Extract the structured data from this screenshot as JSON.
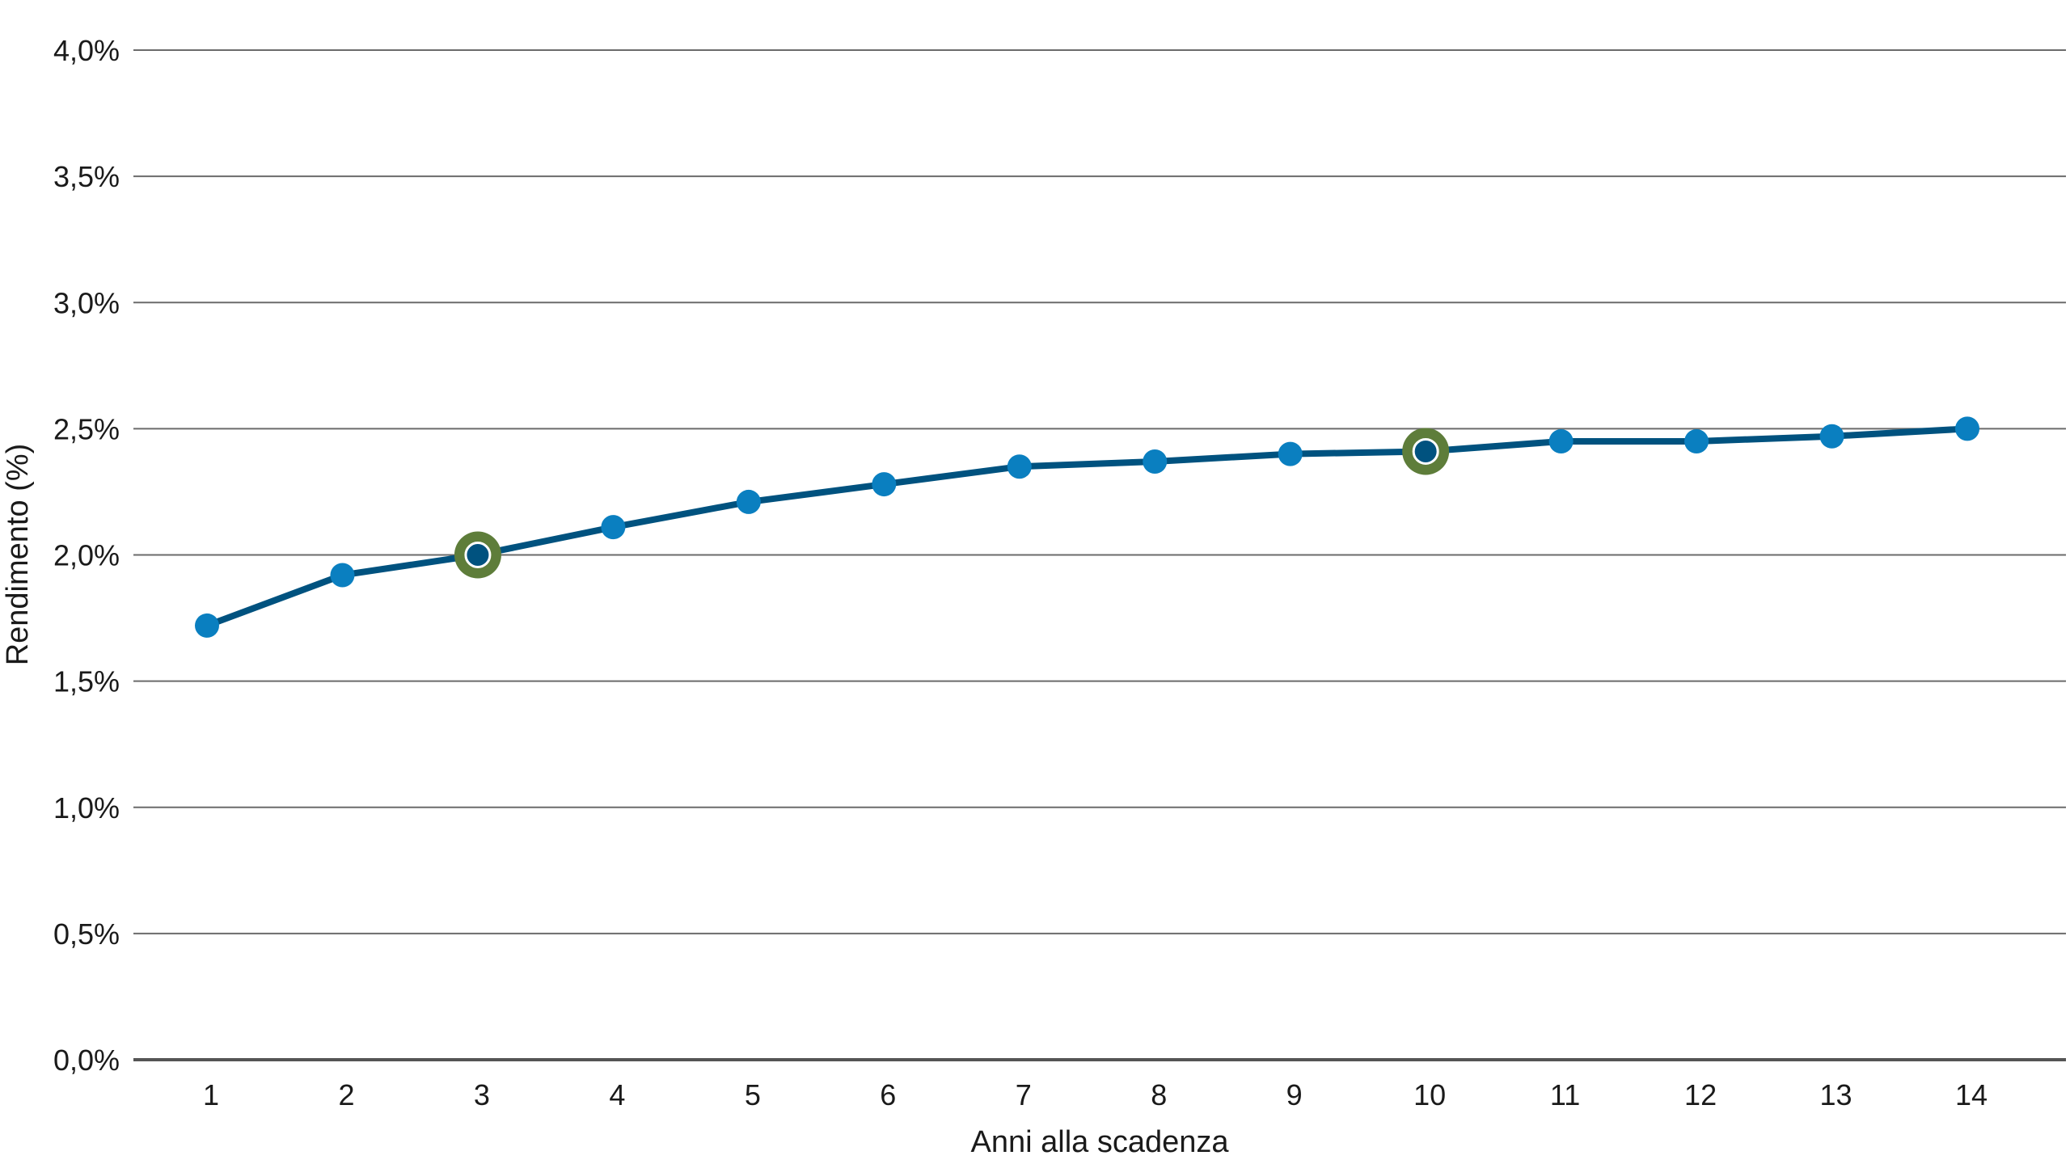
{
  "chart_data": {
    "type": "line",
    "xlabel": "Anni alla scadenza",
    "ylabel": "Rendimento (%)",
    "x": [
      1,
      2,
      3,
      4,
      5,
      6,
      7,
      8,
      9,
      10,
      11,
      12,
      13,
      14
    ],
    "x_tick_labels": [
      "1",
      "2",
      "3",
      "4",
      "5",
      "6",
      "7",
      "8",
      "9",
      "10",
      "11",
      "12",
      "13",
      "14"
    ],
    "y_tick_labels": [
      "0,0%",
      "0,5%",
      "1,0%",
      "1,5%",
      "2,0%",
      "2,5%",
      "3,0%",
      "3,5%",
      "4,0%"
    ],
    "y_ticks": [
      0,
      0.5,
      1,
      1.5,
      2,
      2.5,
      3,
      3.5,
      4
    ],
    "ylim": [
      0,
      4
    ],
    "grid": "horizontal",
    "series": [
      {
        "values": [
          1.72,
          1.92,
          2.0,
          2.11,
          2.21,
          2.28,
          2.35,
          2.37,
          2.4,
          2.41,
          2.45,
          2.45,
          2.47,
          2.5
        ],
        "line_color": "#00527f",
        "marker_color": "#0a7fc0"
      }
    ],
    "highlighted_points": [
      3,
      10
    ],
    "highlight_color": "#5e7d3a",
    "highlight_inner_color": "#00527f"
  }
}
